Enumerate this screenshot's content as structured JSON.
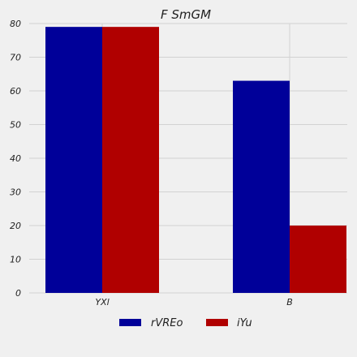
{
  "chart_data": {
    "type": "bar",
    "title": "F SmGM",
    "categories": [
      "YXl",
      "B"
    ],
    "series": [
      {
        "name": "rVREo",
        "values": [
          79,
          63
        ],
        "color": "#000099"
      },
      {
        "name": "iYu",
        "values": [
          79,
          20
        ],
        "color": "#b00000"
      }
    ],
    "xlabel": "",
    "ylabel": "",
    "ylim": [
      0,
      80
    ],
    "yticks": [
      0,
      10,
      20,
      30,
      40,
      50,
      60,
      70,
      80
    ],
    "grid": true,
    "legend": "bottom-center"
  }
}
